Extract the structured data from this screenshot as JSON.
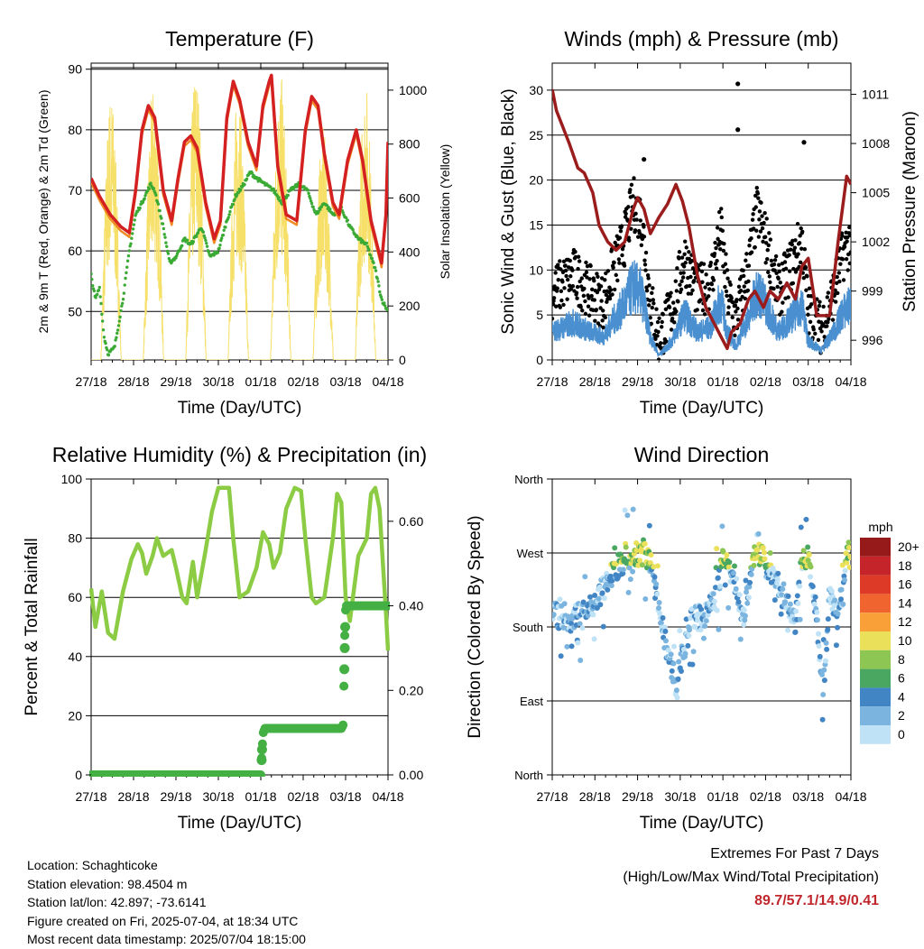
{
  "colors": {
    "temp2m": "#d42020",
    "temp9m": "#f08a24",
    "dewpoint": "#3aaa35",
    "solar": "#f6e06a",
    "gust": "#000000",
    "wind": "#4a90d0",
    "pressure": "#9b1c1c",
    "rh": "#8ccc44",
    "precip": "#44b044"
  },
  "time_axis": {
    "ticks": [
      "27/18",
      "28/18",
      "29/18",
      "30/18",
      "01/18",
      "02/18",
      "03/18",
      "04/18"
    ],
    "xlabel": "Time (Day/UTC)"
  },
  "chart_data": [
    {
      "id": "temperature",
      "type": "line",
      "title": "Temperature (F)",
      "ylabel": "2m & 9m T (Red, Orange) & 2m Td (Green)",
      "ylabel_right": "Solar Insolation (Yellow)",
      "ylim": [
        42,
        91
      ],
      "yticks": [
        50,
        60,
        70,
        80,
        90
      ],
      "y2lim": [
        0,
        1100
      ],
      "y2ticks": [
        0,
        200,
        400,
        600,
        800,
        1000
      ],
      "xlim": [
        0,
        7
      ],
      "grid": true,
      "series": [
        {
          "key": "temp2m",
          "values": [
            [
              0,
              72
            ],
            [
              0.2,
              69
            ],
            [
              0.45,
              66
            ],
            [
              0.7,
              64
            ],
            [
              0.9,
              63
            ],
            [
              1.05,
              70
            ],
            [
              1.2,
              80
            ],
            [
              1.35,
              84
            ],
            [
              1.5,
              82
            ],
            [
              1.7,
              70
            ],
            [
              1.9,
              65
            ],
            [
              2.05,
              72
            ],
            [
              2.2,
              78
            ],
            [
              2.35,
              79
            ],
            [
              2.5,
              77
            ],
            [
              2.7,
              68
            ],
            [
              2.9,
              62
            ],
            [
              3.05,
              65
            ],
            [
              3.2,
              82
            ],
            [
              3.35,
              88
            ],
            [
              3.5,
              85
            ],
            [
              3.7,
              78
            ],
            [
              3.9,
              74
            ],
            [
              4.05,
              84
            ],
            [
              4.2,
              88
            ],
            [
              4.25,
              89
            ],
            [
              4.4,
              74
            ],
            [
              4.6,
              66
            ],
            [
              4.85,
              65
            ],
            [
              5.05,
              80
            ],
            [
              5.2,
              85.5
            ],
            [
              5.35,
              84
            ],
            [
              5.5,
              76
            ],
            [
              5.7,
              68
            ],
            [
              5.85,
              66
            ],
            [
              6.05,
              75
            ],
            [
              6.25,
              80
            ],
            [
              6.4,
              75
            ],
            [
              6.6,
              65
            ],
            [
              6.85,
              58
            ],
            [
              6.95,
              66
            ],
            [
              7,
              78
            ]
          ]
        },
        {
          "key": "dewpoint",
          "values": [
            [
              0,
              56
            ],
            [
              0.1,
              52
            ],
            [
              0.2,
              54
            ],
            [
              0.3,
              46
            ],
            [
              0.4,
              43
            ],
            [
              0.55,
              44
            ],
            [
              0.75,
              52
            ],
            [
              0.9,
              60
            ],
            [
              1.05,
              66
            ],
            [
              1.2,
              68
            ],
            [
              1.4,
              71
            ],
            [
              1.5,
              70
            ],
            [
              1.7,
              64
            ],
            [
              1.85,
              58
            ],
            [
              2.0,
              59
            ],
            [
              2.2,
              62
            ],
            [
              2.35,
              61
            ],
            [
              2.6,
              64
            ],
            [
              2.8,
              59
            ],
            [
              3.0,
              60
            ],
            [
              3.2,
              65
            ],
            [
              3.4,
              69
            ],
            [
              3.6,
              71
            ],
            [
              3.75,
              73
            ],
            [
              3.9,
              72
            ],
            [
              4.1,
              71
            ],
            [
              4.3,
              70
            ],
            [
              4.5,
              68
            ],
            [
              4.7,
              70
            ],
            [
              4.9,
              71
            ],
            [
              5.1,
              70
            ],
            [
              5.3,
              66
            ],
            [
              5.5,
              68
            ],
            [
              5.7,
              66
            ],
            [
              5.9,
              67
            ],
            [
              6.1,
              64
            ],
            [
              6.3,
              62
            ],
            [
              6.5,
              61
            ],
            [
              6.7,
              57
            ],
            [
              6.85,
              52
            ],
            [
              7,
              50
            ]
          ]
        },
        {
          "key": "solar",
          "day_offsets": [
            0.47,
            1.47,
            2.47,
            3.47,
            4.47,
            5.47,
            6.47
          ],
          "peaks": [
            1000,
            1020,
            1090,
            1010,
            1060,
            860,
            1030
          ]
        }
      ]
    },
    {
      "id": "winds",
      "type": "scatter",
      "title": "Winds (mph) & Pressure (mb)",
      "ylabel": "Sonic Wind & Gust (Blue, Black)",
      "ylabel_right": "Station Pressure (Maroon)",
      "ylim": [
        0,
        33
      ],
      "yticks": [
        0,
        5,
        10,
        15,
        20,
        25,
        30
      ],
      "y2lim": [
        994.8,
        1012.9
      ],
      "y2ticks": [
        996,
        999,
        1002,
        1005,
        1008,
        1011
      ],
      "xlim": [
        0,
        7
      ],
      "grid": true,
      "wind_envelope": [
        [
          0,
          6
        ],
        [
          0.5,
          8
        ],
        [
          0.9,
          6
        ],
        [
          1.2,
          5
        ],
        [
          1.4,
          8
        ],
        [
          1.7,
          12
        ],
        [
          1.9,
          16
        ],
        [
          2.1,
          14
        ],
        [
          2.3,
          5
        ],
        [
          2.5,
          1
        ],
        [
          2.8,
          4
        ],
        [
          3.1,
          10
        ],
        [
          3.4,
          6
        ],
        [
          3.7,
          7
        ],
        [
          3.95,
          13
        ],
        [
          4.1,
          6
        ],
        [
          4.3,
          3
        ],
        [
          4.6,
          9
        ],
        [
          4.8,
          15
        ],
        [
          5.0,
          12
        ],
        [
          5.3,
          6
        ],
        [
          5.6,
          9
        ],
        [
          5.85,
          12
        ],
        [
          6.0,
          4
        ],
        [
          6.3,
          2
        ],
        [
          6.6,
          6
        ],
        [
          6.8,
          10
        ],
        [
          7,
          12
        ]
      ],
      "pressure": [
        [
          0,
          1011.3
        ],
        [
          0.1,
          1010
        ],
        [
          0.25,
          1009
        ],
        [
          0.4,
          1008
        ],
        [
          0.6,
          1006.5
        ],
        [
          0.75,
          1006.2
        ],
        [
          0.95,
          1005
        ],
        [
          1.1,
          1003
        ],
        [
          1.3,
          1002
        ],
        [
          1.5,
          1001.5
        ],
        [
          1.7,
          1002
        ],
        [
          1.9,
          1004
        ],
        [
          2.0,
          1004.7
        ],
        [
          2.15,
          1004
        ],
        [
          2.3,
          1002.5
        ],
        [
          2.5,
          1003.5
        ],
        [
          2.7,
          1004.3
        ],
        [
          2.9,
          1005.5
        ],
        [
          3.05,
          1004.5
        ],
        [
          3.2,
          1003
        ],
        [
          3.4,
          1000
        ],
        [
          3.6,
          998
        ],
        [
          3.8,
          997
        ],
        [
          4.0,
          996
        ],
        [
          4.1,
          995.5
        ],
        [
          4.2,
          996.5
        ],
        [
          4.4,
          997
        ],
        [
          4.6,
          998.5
        ],
        [
          4.75,
          999
        ],
        [
          4.95,
          998
        ],
        [
          5.1,
          999
        ],
        [
          5.3,
          998.5
        ],
        [
          5.5,
          999.5
        ],
        [
          5.7,
          998.5
        ],
        [
          5.85,
          1000.5
        ],
        [
          6.0,
          1001
        ],
        [
          6.2,
          997.5
        ],
        [
          6.5,
          997.5
        ],
        [
          6.7,
          1002
        ],
        [
          6.9,
          1006
        ],
        [
          7,
          1005.5
        ]
      ],
      "outliers": [
        [
          4.35,
          30.7
        ],
        [
          4.35,
          25.6
        ],
        [
          5.9,
          24.2
        ],
        [
          2.15,
          22.3
        ]
      ]
    },
    {
      "id": "humidity",
      "type": "line",
      "title": "Relative Humidity (%) & Precipitation (in)",
      "ylabel": "Percent & Total Rainfall",
      "ylim": [
        0,
        100
      ],
      "yticks": [
        0,
        20,
        40,
        60,
        80,
        100
      ],
      "y2lim": [
        0,
        0.7
      ],
      "y2ticks": [
        "0.00",
        "0.20",
        "0.40",
        "0.60"
      ],
      "xlim": [
        0,
        7
      ],
      "grid": true,
      "series": [
        {
          "key": "rh",
          "values": [
            [
              0,
              63
            ],
            [
              0.1,
              50
            ],
            [
              0.25,
              62
            ],
            [
              0.4,
              48
            ],
            [
              0.55,
              46
            ],
            [
              0.75,
              62
            ],
            [
              0.95,
              73
            ],
            [
              1.1,
              78
            ],
            [
              1.2,
              75
            ],
            [
              1.3,
              68
            ],
            [
              1.45,
              74
            ],
            [
              1.55,
              80
            ],
            [
              1.7,
              74
            ],
            [
              1.9,
              76
            ],
            [
              2.0,
              70
            ],
            [
              2.15,
              60
            ],
            [
              2.25,
              58
            ],
            [
              2.4,
              72
            ],
            [
              2.5,
              60
            ],
            [
              2.7,
              76
            ],
            [
              2.85,
              89
            ],
            [
              3.0,
              97
            ],
            [
              3.15,
              97
            ],
            [
              3.25,
              97
            ],
            [
              3.35,
              80
            ],
            [
              3.5,
              60
            ],
            [
              3.7,
              62
            ],
            [
              3.9,
              70
            ],
            [
              4.05,
              82
            ],
            [
              4.2,
              78
            ],
            [
              4.3,
              70
            ],
            [
              4.45,
              75
            ],
            [
              4.6,
              90
            ],
            [
              4.8,
              97
            ],
            [
              4.95,
              96
            ],
            [
              5.05,
              80
            ],
            [
              5.2,
              60
            ],
            [
              5.3,
              58
            ],
            [
              5.5,
              60
            ],
            [
              5.7,
              80
            ],
            [
              5.8,
              95
            ],
            [
              5.9,
              92
            ],
            [
              6.0,
              60
            ],
            [
              6.1,
              52
            ],
            [
              6.3,
              74
            ],
            [
              6.5,
              80
            ],
            [
              6.6,
              95
            ],
            [
              6.7,
              97
            ],
            [
              6.8,
              90
            ],
            [
              6.95,
              55
            ],
            [
              7,
              42
            ]
          ]
        },
        {
          "key": "precip",
          "values": [
            [
              0,
              0
            ],
            [
              4.0,
              0
            ],
            [
              4.03,
              0.06
            ],
            [
              4.06,
              0.1
            ],
            [
              4.1,
              0.11
            ],
            [
              5.9,
              0.11
            ],
            [
              5.95,
              0.12
            ],
            [
              5.97,
              0.3
            ],
            [
              6.0,
              0.39
            ],
            [
              6.02,
              0.4
            ],
            [
              7,
              0.4
            ]
          ]
        }
      ]
    },
    {
      "id": "direction",
      "type": "scatter",
      "title": "Wind Direction",
      "ylabel": "Direction (Colored By Speed)",
      "ylim": [
        0,
        360
      ],
      "yticks": [
        {
          "v": 0,
          "label": "North"
        },
        {
          "v": 90,
          "label": "East"
        },
        {
          "v": 180,
          "label": "South"
        },
        {
          "v": 270,
          "label": "West"
        },
        {
          "v": 360,
          "label": "North"
        }
      ],
      "xlim": [
        0,
        7
      ],
      "grid": true,
      "centers": [
        [
          0,
          200
        ],
        [
          0.3,
          185
        ],
        [
          0.6,
          195
        ],
        [
          0.9,
          205
        ],
        [
          1.1,
          220
        ],
        [
          1.3,
          235
        ],
        [
          1.5,
          250
        ],
        [
          1.75,
          265
        ],
        [
          1.95,
          270
        ],
        [
          2.2,
          268
        ],
        [
          2.35,
          250
        ],
        [
          2.5,
          200
        ],
        [
          2.7,
          150
        ],
        [
          2.9,
          110
        ],
        [
          3.1,
          150
        ],
        [
          3.3,
          195
        ],
        [
          3.5,
          190
        ],
        [
          3.8,
          210
        ],
        [
          4.0,
          260
        ],
        [
          4.15,
          250
        ],
        [
          4.3,
          230
        ],
        [
          4.5,
          190
        ],
        [
          4.7,
          265
        ],
        [
          4.9,
          268
        ],
        [
          5.1,
          245
        ],
        [
          5.3,
          230
        ],
        [
          5.5,
          210
        ],
        [
          5.7,
          185
        ],
        [
          5.85,
          260
        ],
        [
          6.0,
          265
        ],
        [
          6.2,
          190
        ],
        [
          6.35,
          100
        ],
        [
          6.5,
          220
        ],
        [
          6.7,
          190
        ],
        [
          6.9,
          270
        ],
        [
          7,
          275
        ]
      ],
      "colorbar": {
        "unit": "mph",
        "labels": [
          "20+",
          "18",
          "16",
          "14",
          "12",
          "10",
          "8",
          "6",
          "4",
          "2",
          "0"
        ],
        "colors": [
          "#961a1a",
          "#c4242a",
          "#dd3a28",
          "#f06430",
          "#f9a038",
          "#ebe05a",
          "#8dc653",
          "#4aa761",
          "#4285c4",
          "#7bb5df",
          "#bfe2f6"
        ]
      }
    }
  ],
  "station": {
    "location": "Location: Schaghticoke",
    "elevation": "Station elevation: 98.4504 m",
    "latlon": "Station lat/lon: 42.897; -73.6141",
    "created": "Figure created on Fri, 2025-07-04, at 18:34 UTC",
    "recent": "Most recent data timestamp: 2025/07/04 18:15:00"
  },
  "extremes": {
    "title": "Extremes For Past 7 Days",
    "subtitle": "(High/Low/Max Wind/Total Precipitation)",
    "values": "89.7/57.1/14.9/0.41"
  }
}
